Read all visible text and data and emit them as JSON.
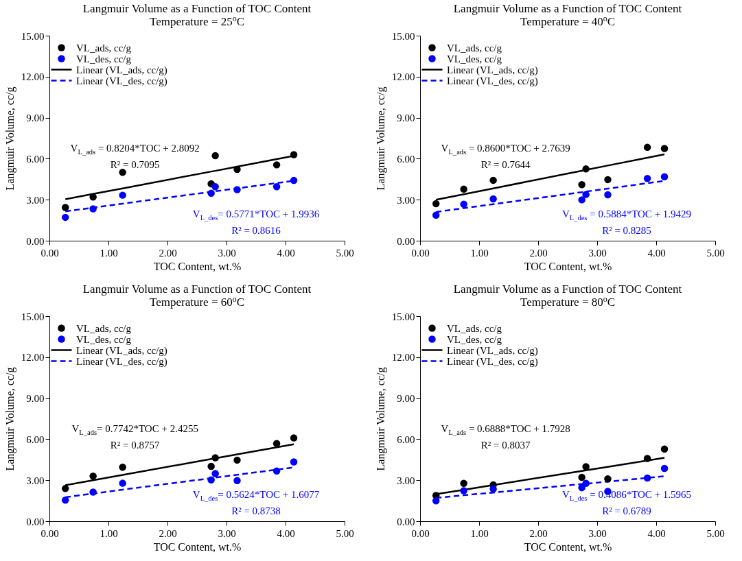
{
  "chart_data": [
    {
      "type": "scatter",
      "title": "Langmuir Volume as a Function of TOC Content",
      "subtitle": "Temperature  = 25$^{o}$C",
      "xlabel": "TOC Content, wt.%",
      "ylabel": "Langmuir Volume, cc/g",
      "x": [
        0.27,
        0.74,
        1.24,
        2.74,
        2.81,
        3.18,
        3.85,
        4.14
      ],
      "xlim": [
        0,
        5
      ],
      "ylim": [
        0,
        15
      ],
      "xticks": [
        {
          "value": 0,
          "label": "0.00"
        },
        {
          "value": 1,
          "label": "1.00"
        },
        {
          "value": 2,
          "label": "2.00"
        },
        {
          "value": 3,
          "label": "3.00"
        },
        {
          "value": 4,
          "label": "4.00"
        },
        {
          "value": 5,
          "label": "5.00"
        }
      ],
      "yticks": [
        {
          "value": 0,
          "label": "0.00"
        },
        {
          "value": 3,
          "label": "3.00"
        },
        {
          "value": 6,
          "label": "6.00"
        },
        {
          "value": 9,
          "label": "9.00"
        },
        {
          "value": 12,
          "label": "12.00"
        },
        {
          "value": 15,
          "label": "15.00"
        }
      ],
      "legend": "top left",
      "grid": false,
      "series": [
        {
          "name": "VL_ads, cc/g",
          "marker": "circle",
          "color": "#000000",
          "values": [
            2.43,
            3.2,
            5.0,
            4.16,
            6.22,
            5.22,
            5.55,
            6.3
          ]
        },
        {
          "name": "VL_des, cc/g",
          "marker": "circle",
          "color": "#0000ff",
          "values": [
            1.71,
            2.33,
            3.33,
            3.47,
            3.95,
            3.74,
            3.95,
            4.41
          ]
        },
        {
          "name": "Linear (VL_ads, cc/g)",
          "type": "line",
          "line_style": "solid",
          "color": "#000000",
          "values": [
            3.03,
            3.42,
            3.83,
            5.06,
            5.11,
            5.42,
            5.97,
            6.21
          ]
        },
        {
          "name": "Linear (VL_des, cc/g)",
          "type": "line",
          "line_style": "dashed",
          "color": "#0000ff",
          "values": [
            2.15,
            2.42,
            2.71,
            3.58,
            3.62,
            3.83,
            4.22,
            4.38
          ]
        }
      ],
      "annotations": [
        "V$_{L_ads}$ = 0.8204*TOC + 2.8092",
        "R² = 0.7095",
        "V$_{L_des}$= 0.5771*TOC + 1.9936",
        "R² = 0.8616"
      ]
    },
    {
      "type": "scatter",
      "title": "Langmuir Volume as a Function of TOC Content",
      "subtitle": "Temperature  = 40$^{o}$C",
      "xlabel": "TOC Content, wt.%",
      "ylabel": "Langmuir Volume, cc/g",
      "x": [
        0.27,
        0.74,
        1.24,
        2.74,
        2.81,
        3.18,
        3.85,
        4.14
      ],
      "xlim": [
        0,
        5
      ],
      "ylim": [
        0,
        15
      ],
      "xticks": [
        {
          "value": 0,
          "label": "0.00"
        },
        {
          "value": 1,
          "label": "1.00"
        },
        {
          "value": 2,
          "label": "2.00"
        },
        {
          "value": 3,
          "label": "3.00"
        },
        {
          "value": 4,
          "label": "4.00"
        },
        {
          "value": 5,
          "label": "5.00"
        }
      ],
      "yticks": [
        {
          "value": 0,
          "label": "0.00"
        },
        {
          "value": 3,
          "label": "3.00"
        },
        {
          "value": 6,
          "label": "6.00"
        },
        {
          "value": 9,
          "label": "9.00"
        },
        {
          "value": 12,
          "label": "12.00"
        },
        {
          "value": 15,
          "label": "15.00"
        }
      ],
      "legend": "top left",
      "grid": false,
      "series": [
        {
          "name": "VL_ads, cc/g",
          "marker": "circle",
          "color": "#000000",
          "values": [
            2.71,
            3.77,
            4.42,
            4.1,
            5.25,
            4.47,
            6.83,
            6.75
          ]
        },
        {
          "name": "VL_des, cc/g",
          "marker": "circle",
          "color": "#0000ff",
          "values": [
            1.87,
            2.67,
            3.06,
            2.99,
            3.38,
            3.36,
            4.55,
            4.68
          ]
        },
        {
          "name": "Linear (VL_ads, cc/g)",
          "type": "line",
          "line_style": "solid",
          "color": "#000000",
          "values": [
            3.0,
            3.4,
            3.83,
            5.12,
            5.18,
            5.5,
            6.07,
            6.32
          ]
        },
        {
          "name": "Linear (VL_des, cc/g)",
          "type": "line",
          "line_style": "dashed",
          "color": "#0000ff",
          "values": [
            2.1,
            2.38,
            2.67,
            3.55,
            3.6,
            3.81,
            4.21,
            4.38
          ]
        }
      ],
      "annotations": [
        "V$_{L_ads}$ = 0.8600*TOC + 2.7639",
        "R² = 0.7644",
        "V$_{L_des}$ = 0.5884*TOC + 1.9429",
        "R² = 0.8285"
      ]
    },
    {
      "type": "scatter",
      "title": "Langmuir Volume as a Function of TOC Content",
      "subtitle": "Temperature  = 60$^{o}$C",
      "xlabel": "TOC Content, wt.%",
      "ylabel": "Langmuir Volume, cc/g",
      "x": [
        0.27,
        0.74,
        1.24,
        2.74,
        2.81,
        3.18,
        3.85,
        4.14
      ],
      "xlim": [
        0,
        5
      ],
      "ylim": [
        0,
        15
      ],
      "xticks": [
        {
          "value": 0,
          "label": "0.00"
        },
        {
          "value": 1,
          "label": "1.00"
        },
        {
          "value": 2,
          "label": "2.00"
        },
        {
          "value": 3,
          "label": "3.00"
        },
        {
          "value": 4,
          "label": "4.00"
        },
        {
          "value": 5,
          "label": "5.00"
        }
      ],
      "yticks": [
        {
          "value": 0,
          "label": "0.00"
        },
        {
          "value": 3,
          "label": "3.00"
        },
        {
          "value": 6,
          "label": "6.00"
        },
        {
          "value": 9,
          "label": "9.00"
        },
        {
          "value": 12,
          "label": "12.00"
        },
        {
          "value": 15,
          "label": "15.00"
        }
      ],
      "legend": "top left",
      "grid": false,
      "series": [
        {
          "name": "VL_ads, cc/g",
          "marker": "circle",
          "color": "#000000",
          "values": [
            2.39,
            3.3,
            3.95,
            4.01,
            4.64,
            4.47,
            5.68,
            6.09
          ]
        },
        {
          "name": "VL_des, cc/g",
          "marker": "circle",
          "color": "#0000ff",
          "values": [
            1.54,
            2.13,
            2.78,
            3.02,
            3.49,
            2.97,
            3.67,
            4.34
          ]
        },
        {
          "name": "Linear (VL_ads, cc/g)",
          "type": "line",
          "line_style": "solid",
          "color": "#000000",
          "values": [
            2.63,
            3.0,
            3.39,
            4.55,
            4.6,
            4.89,
            5.41,
            5.63
          ]
        },
        {
          "name": "Linear (VL_des, cc/g)",
          "type": "line",
          "line_style": "dashed",
          "color": "#0000ff",
          "values": [
            1.76,
            2.02,
            2.31,
            3.15,
            3.19,
            3.4,
            3.77,
            3.94
          ]
        }
      ],
      "annotations": [
        "V$_{L_ads}$= 0.7742*TOC + 2.4255",
        "R² = 0.8757",
        "V$_{L_des}$= 0.5624*TOC + 1.6077",
        "R² = 0.8738"
      ]
    },
    {
      "type": "scatter",
      "title": "Langmuir Volume as a Function of TOC Content",
      "subtitle": "Temperature  = 80$^{o}$C",
      "xlabel": "TOC Content, wt.%",
      "ylabel": "Langmuir Volume, cc/g",
      "x": [
        0.27,
        0.74,
        1.24,
        2.74,
        2.81,
        3.18,
        3.85,
        4.14
      ],
      "xlim": [
        0,
        5
      ],
      "ylim": [
        0,
        15
      ],
      "xticks": [
        {
          "value": 0,
          "label": "0.00"
        },
        {
          "value": 1,
          "label": "1.00"
        },
        {
          "value": 2,
          "label": "2.00"
        },
        {
          "value": 3,
          "label": "3.00"
        },
        {
          "value": 4,
          "label": "4.00"
        },
        {
          "value": 5,
          "label": "5.00"
        }
      ],
      "yticks": [
        {
          "value": 0,
          "label": "0.00"
        },
        {
          "value": 3,
          "label": "3.00"
        },
        {
          "value": 6,
          "label": "6.00"
        },
        {
          "value": 9,
          "label": "9.00"
        },
        {
          "value": 12,
          "label": "12.00"
        },
        {
          "value": 15,
          "label": "15.00"
        }
      ],
      "legend": "top left",
      "grid": false,
      "series": [
        {
          "name": "VL_ads, cc/g",
          "marker": "circle",
          "color": "#000000",
          "values": [
            1.88,
            2.77,
            2.66,
            3.21,
            3.99,
            3.1,
            4.59,
            5.28
          ]
        },
        {
          "name": "VL_des, cc/g",
          "marker": "circle",
          "color": "#0000ff",
          "values": [
            1.49,
            2.23,
            2.36,
            2.45,
            2.77,
            2.18,
            3.16,
            3.86
          ]
        },
        {
          "name": "Linear (VL_ads, cc/g)",
          "type": "line",
          "line_style": "solid",
          "color": "#000000",
          "values": [
            1.98,
            2.3,
            2.65,
            3.68,
            3.73,
            3.98,
            4.44,
            4.64
          ]
        },
        {
          "name": "Linear (VL_des, cc/g)",
          "type": "line",
          "line_style": "dashed",
          "color": "#0000ff",
          "values": [
            1.71,
            1.9,
            2.1,
            2.72,
            2.74,
            2.9,
            3.17,
            3.29
          ]
        }
      ],
      "annotations": [
        "V$_{L_ads}$ = 0.6888*TOC + 1.7928",
        "R² = 0.8037",
        "V$_{L_des}$ = 0.4086*TOC + 1.5965",
        "R² = 0.6789"
      ]
    }
  ]
}
